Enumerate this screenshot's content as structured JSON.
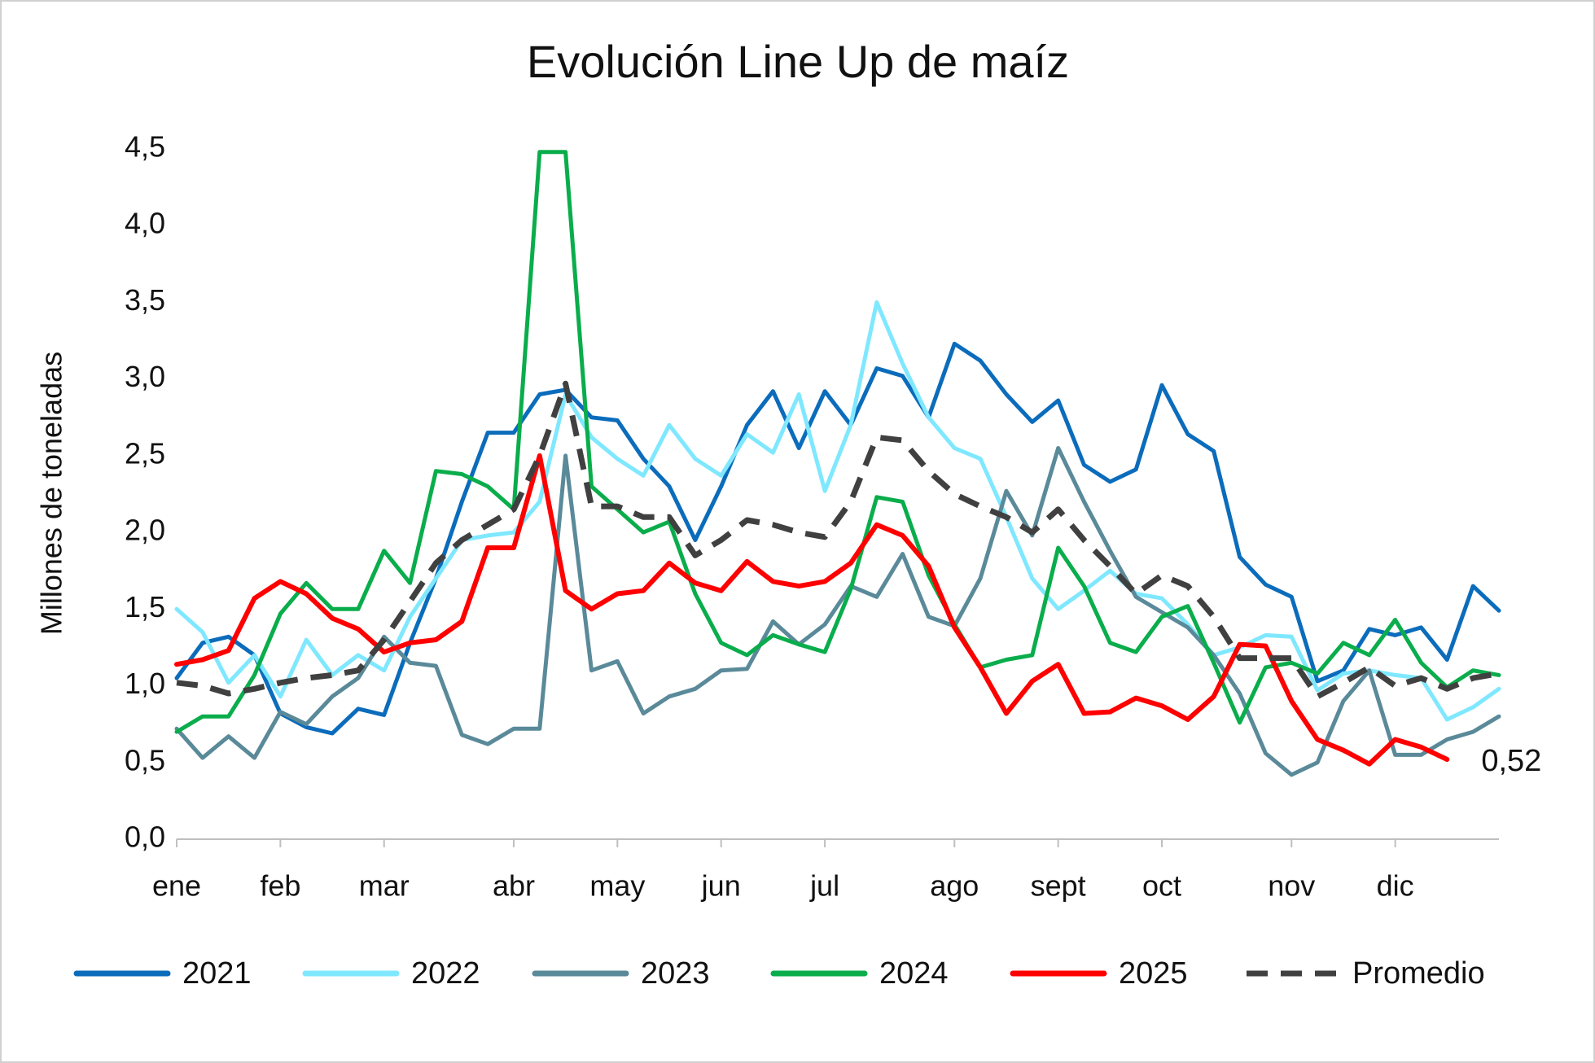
{
  "chart_data": {
    "type": "line",
    "title": "Evolución Line Up de maíz",
    "y_label": "Millones de toneladas",
    "categories": [
      "ene",
      null,
      null,
      null,
      "feb",
      null,
      null,
      null,
      "mar",
      null,
      null,
      null,
      null,
      "abr",
      null,
      null,
      null,
      "may",
      null,
      null,
      null,
      "jun",
      null,
      null,
      null,
      "jul",
      null,
      null,
      null,
      null,
      "ago",
      null,
      null,
      null,
      "sept",
      null,
      null,
      null,
      "oct",
      null,
      null,
      null,
      null,
      "nov",
      null,
      null,
      null,
      "dic",
      null,
      null,
      null,
      null
    ],
    "ylim": [
      0,
      4.5
    ],
    "yticks": [
      {
        "value": 0,
        "label": "0,0"
      },
      {
        "value": 0.5,
        "label": "0,5"
      },
      {
        "value": 1,
        "label": "1,0"
      },
      {
        "value": 1.5,
        "label": "1,5"
      },
      {
        "value": 2,
        "label": "2,0"
      },
      {
        "value": 2.5,
        "label": "2,5"
      },
      {
        "value": 3,
        "label": "3,0"
      },
      {
        "value": 3.5,
        "label": "3,5"
      },
      {
        "value": 4,
        "label": "4,0"
      },
      {
        "value": 4.5,
        "label": "4,5"
      }
    ],
    "grid": false,
    "legend": "bottom",
    "series": [
      {
        "name": "2021",
        "color": "#0b6cbb",
        "dashed": false,
        "values": [
          1.05,
          1.28,
          1.32,
          1.2,
          0.82,
          0.73,
          0.69,
          0.85,
          0.81,
          1.28,
          1.7,
          2.2,
          2.65,
          2.65,
          2.9,
          2.93,
          2.75,
          2.73,
          2.48,
          2.3,
          1.95,
          2.3,
          2.7,
          2.92,
          2.55,
          2.92,
          2.7,
          3.07,
          3.02,
          2.75,
          3.23,
          3.12,
          2.9,
          2.72,
          2.86,
          2.44,
          2.33,
          2.41,
          2.96,
          2.64,
          2.53,
          1.84,
          1.66,
          1.58,
          1.03,
          1.1,
          1.37,
          1.33,
          1.38,
          1.17,
          1.65,
          1.49
        ]
      },
      {
        "name": "2022",
        "color": "#7fe8ff",
        "dashed": false,
        "values": [
          1.5,
          1.35,
          1.02,
          1.2,
          0.93,
          1.3,
          1.07,
          1.2,
          1.1,
          1.45,
          1.7,
          1.95,
          1.98,
          2.0,
          2.2,
          2.9,
          2.62,
          2.48,
          2.37,
          2.7,
          2.48,
          2.37,
          2.64,
          2.52,
          2.9,
          2.27,
          2.7,
          3.5,
          3.1,
          2.75,
          2.55,
          2.48,
          2.1,
          1.7,
          1.5,
          1.62,
          1.75,
          1.6,
          1.57,
          1.4,
          1.2,
          1.25,
          1.33,
          1.32,
          0.97,
          1.08,
          1.1,
          1.07,
          1.05,
          0.78,
          0.86,
          0.98
        ]
      },
      {
        "name": "2023",
        "color": "#5a8a99",
        "dashed": false,
        "values": [
          0.72,
          0.53,
          0.67,
          0.53,
          0.83,
          0.75,
          0.93,
          1.05,
          1.32,
          1.15,
          1.13,
          0.68,
          0.62,
          0.72,
          0.72,
          2.5,
          1.1,
          1.16,
          0.82,
          0.93,
          0.98,
          1.1,
          1.11,
          1.42,
          1.27,
          1.4,
          1.65,
          1.58,
          1.86,
          1.45,
          1.39,
          1.7,
          2.27,
          1.98,
          2.55,
          2.2,
          1.88,
          1.58,
          1.48,
          1.38,
          1.2,
          0.95,
          0.56,
          0.42,
          0.5,
          0.9,
          1.1,
          0.55,
          0.55,
          0.65,
          0.7,
          0.8
        ]
      },
      {
        "name": "2024",
        "color": "#0aad4b",
        "dashed": false,
        "values": [
          0.7,
          0.8,
          0.8,
          1.07,
          1.47,
          1.67,
          1.5,
          1.5,
          1.88,
          1.67,
          2.4,
          2.38,
          2.3,
          2.15,
          4.48,
          4.48,
          2.3,
          2.15,
          2.0,
          2.07,
          1.6,
          1.28,
          1.2,
          1.33,
          1.27,
          1.22,
          1.63,
          2.23,
          2.2,
          1.72,
          1.4,
          1.12,
          1.17,
          1.2,
          1.9,
          1.65,
          1.28,
          1.22,
          1.45,
          1.52,
          1.15,
          0.76,
          1.12,
          1.15,
          1.08,
          1.28,
          1.2,
          1.43,
          1.15,
          0.99,
          1.1,
          1.07
        ]
      },
      {
        "name": "2025",
        "color": "#ff0000",
        "dashed": false,
        "values": [
          1.14,
          1.17,
          1.23,
          1.57,
          1.68,
          1.6,
          1.44,
          1.37,
          1.22,
          1.28,
          1.3,
          1.42,
          1.9,
          1.9,
          2.5,
          1.62,
          1.5,
          1.6,
          1.62,
          1.8,
          1.67,
          1.62,
          1.81,
          1.68,
          1.65,
          1.68,
          1.8,
          2.05,
          1.98,
          1.78,
          1.38,
          1.12,
          0.82,
          1.03,
          1.14,
          0.82,
          0.83,
          0.92,
          0.87,
          0.78,
          0.93,
          1.27,
          1.26,
          0.9,
          0.65,
          0.58,
          0.49,
          0.65,
          0.6,
          0.52,
          null,
          null
        ],
        "value_labels": [
          null,
          null,
          null,
          null,
          null,
          null,
          null,
          null,
          null,
          null,
          null,
          null,
          null,
          null,
          null,
          null,
          null,
          null,
          null,
          null,
          null,
          null,
          null,
          null,
          null,
          null,
          null,
          null,
          null,
          null,
          null,
          null,
          null,
          null,
          null,
          null,
          null,
          null,
          null,
          null,
          null,
          null,
          null,
          null,
          null,
          null,
          null,
          null,
          null,
          "0,52",
          null,
          null
        ]
      },
      {
        "name": "Promedio",
        "color": "#404040",
        "dashed": true,
        "values": [
          1.02,
          1.0,
          0.95,
          0.98,
          1.02,
          1.05,
          1.07,
          1.1,
          1.3,
          1.55,
          1.8,
          1.95,
          2.05,
          2.15,
          2.5,
          2.97,
          2.17,
          2.17,
          2.1,
          2.1,
          1.85,
          1.95,
          2.08,
          2.05,
          2.0,
          1.97,
          2.2,
          2.62,
          2.6,
          2.4,
          2.25,
          2.17,
          2.1,
          2.0,
          2.15,
          1.95,
          1.78,
          1.6,
          1.72,
          1.65,
          1.45,
          1.18,
          1.18,
          1.18,
          0.93,
          1.02,
          1.12,
          1.0,
          1.05,
          0.98,
          1.05,
          1.08
        ]
      }
    ]
  }
}
